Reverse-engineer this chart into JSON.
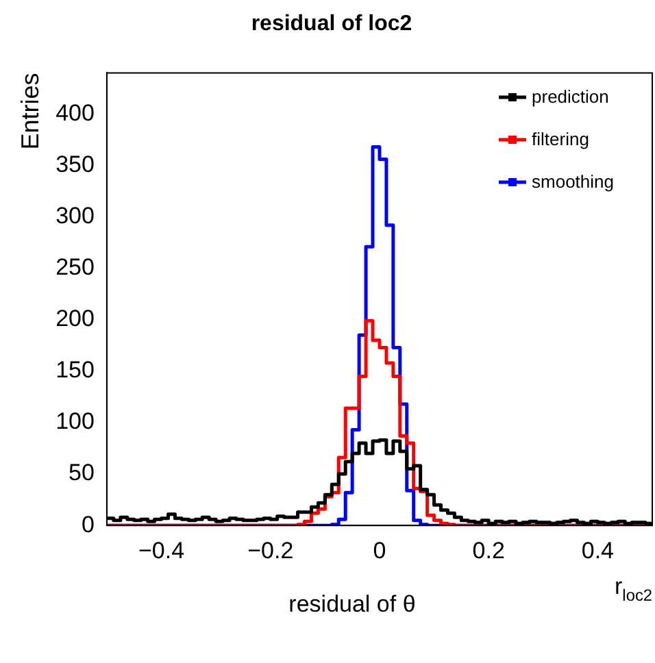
{
  "chart_data": {
    "type": "histogram",
    "title": "residual of loc2",
    "xlabel": "r$_{loc2}$",
    "ylabel": "Entries",
    "annotations": [
      "residual of θ"
    ],
    "bins": [
      -0.5,
      -0.4875,
      -0.475,
      -0.4625,
      -0.45,
      -0.4375,
      -0.425,
      -0.4125,
      -0.4,
      -0.3875,
      -0.375,
      -0.3625,
      -0.35,
      -0.3375,
      -0.325,
      -0.3125,
      -0.3,
      -0.2875,
      -0.275,
      -0.2625,
      -0.25,
      -0.2375,
      -0.225,
      -0.2125,
      -0.2,
      -0.1875,
      -0.175,
      -0.1625,
      -0.15,
      -0.1375,
      -0.125,
      -0.1125,
      -0.1,
      -0.0875,
      -0.075,
      -0.0625,
      -0.05,
      -0.0375,
      -0.025,
      -0.0125,
      0,
      0.0125,
      0.025,
      0.0375,
      0.05,
      0.0625,
      0.075,
      0.0875,
      0.1,
      0.1125,
      0.125,
      0.1375,
      0.15,
      0.1625,
      0.175,
      0.1875,
      0.2,
      0.2125,
      0.225,
      0.2375,
      0.25,
      0.2625,
      0.275,
      0.2875,
      0.3,
      0.3125,
      0.325,
      0.3375,
      0.35,
      0.3625,
      0.375,
      0.3875,
      0.4,
      0.4125,
      0.425,
      0.4375,
      0.45,
      0.4625,
      0.475,
      0.4875,
      0.5
    ],
    "series": [
      {
        "name": "prediction",
        "color": "#000000",
        "values": [
          7,
          5,
          8,
          6,
          5,
          6,
          4,
          6,
          7,
          11,
          7,
          6,
          5,
          6,
          8,
          6,
          4,
          5,
          7,
          6,
          5,
          5,
          6,
          7,
          6,
          9,
          8,
          8,
          13,
          13,
          18,
          22,
          30,
          40,
          50,
          62,
          70,
          80,
          70,
          82,
          83,
          70,
          82,
          72,
          55,
          58,
          35,
          30,
          20,
          15,
          12,
          8,
          5,
          4,
          3,
          5,
          2,
          4,
          3,
          4,
          2,
          3,
          4,
          3,
          3,
          2,
          3,
          4,
          5,
          3,
          2,
          4,
          3,
          2,
          3,
          4,
          2,
          3,
          3,
          2
        ]
      },
      {
        "name": "filtering",
        "color": "#ff0000",
        "values": [
          0,
          0,
          0,
          0,
          0,
          0,
          0,
          0,
          0,
          0,
          0,
          0,
          0,
          0,
          0,
          0,
          0,
          0,
          0,
          0,
          0,
          0,
          0,
          0,
          0,
          0,
          0,
          0,
          1,
          4,
          12,
          16,
          28,
          32,
          66,
          114,
          114,
          145,
          199,
          180,
          173,
          158,
          145,
          87,
          80,
          36,
          33,
          10,
          5,
          2,
          1,
          0,
          0,
          0,
          0,
          0,
          0,
          0,
          0,
          0,
          0,
          0,
          0,
          0,
          0,
          0,
          0,
          0,
          0,
          0,
          0,
          0,
          0,
          0,
          0,
          0,
          0,
          0,
          0,
          0
        ]
      },
      {
        "name": "smoothing",
        "color": "#0000ff",
        "values": [
          0,
          0,
          0,
          0,
          0,
          0,
          0,
          0,
          0,
          0,
          0,
          0,
          0,
          0,
          0,
          0,
          0,
          0,
          0,
          0,
          0,
          0,
          0,
          0,
          0,
          0,
          0,
          0,
          0,
          0,
          0,
          0,
          0,
          1,
          6,
          32,
          93,
          185,
          271,
          368,
          356,
          292,
          173,
          118,
          34,
          5,
          1,
          0,
          0,
          0,
          0,
          0,
          0,
          0,
          0,
          0,
          0,
          0,
          0,
          0,
          0,
          0,
          0,
          0,
          0,
          0,
          0,
          0,
          0,
          0,
          0,
          0,
          0,
          0,
          0,
          0,
          0,
          0,
          0,
          0
        ]
      }
    ],
    "xlim": [
      -0.5,
      0.5
    ],
    "xticks": [
      -0.4,
      -0.2,
      0,
      0.2,
      0.4
    ],
    "ylim": [
      0,
      440
    ],
    "yticks": [
      0,
      50,
      100,
      150,
      200,
      250,
      300,
      350,
      400
    ],
    "grid": false,
    "legend": "top right"
  }
}
